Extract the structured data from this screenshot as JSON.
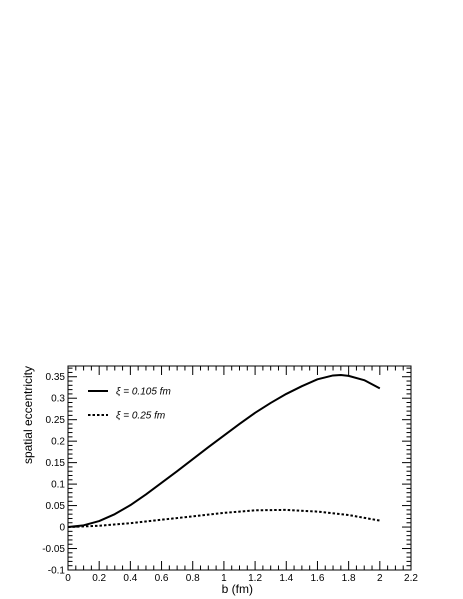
{
  "chart_data": {
    "type": "line",
    "title": "",
    "xlabel": "b (fm)",
    "ylabel": "spatial eccentricity",
    "xlim": [
      0,
      2.2
    ],
    "ylim": [
      -0.1,
      0.375
    ],
    "x_ticks": [
      0,
      0.2,
      0.4,
      0.6,
      0.8,
      1,
      1.2,
      1.4,
      1.6,
      1.8,
      2,
      2.2
    ],
    "x_tick_labels": [
      "0",
      "0.2",
      "0.4",
      "0.6",
      "0.8",
      "1",
      "1.2",
      "1.4",
      "1.6",
      "1.8",
      "2",
      "2.2"
    ],
    "y_ticks": [
      -0.1,
      -0.05,
      0,
      0.05,
      0.1,
      0.15,
      0.2,
      0.25,
      0.3,
      0.35
    ],
    "y_tick_labels": [
      "-0.1",
      "-0.05",
      "0",
      "0.05",
      "0.1",
      "0.15",
      "0.2",
      "0.25",
      "0.3",
      "0.35"
    ],
    "legend_position": "top-left",
    "grid": false,
    "series": [
      {
        "name": "ξ = 0.105 fm",
        "line_style": "solid",
        "color": "#000000",
        "x": [
          0,
          0.1,
          0.2,
          0.3,
          0.4,
          0.5,
          0.6,
          0.7,
          0.8,
          0.9,
          1.0,
          1.1,
          1.2,
          1.3,
          1.4,
          1.5,
          1.6,
          1.7,
          1.75,
          1.8,
          1.9,
          2.0
        ],
        "y": [
          0,
          0.004,
          0.014,
          0.03,
          0.051,
          0.076,
          0.103,
          0.13,
          0.158,
          0.186,
          0.213,
          0.24,
          0.266,
          0.289,
          0.31,
          0.328,
          0.344,
          0.353,
          0.354,
          0.352,
          0.342,
          0.323
        ]
      },
      {
        "name": "ξ = 0.25 fm",
        "line_style": "dotted",
        "color": "#000000",
        "x": [
          0,
          0.2,
          0.4,
          0.6,
          0.8,
          1.0,
          1.2,
          1.4,
          1.6,
          1.8,
          2.0
        ],
        "y": [
          0,
          0.003,
          0.009,
          0.017,
          0.025,
          0.033,
          0.039,
          0.04,
          0.036,
          0.028,
          0.015
        ]
      }
    ]
  }
}
